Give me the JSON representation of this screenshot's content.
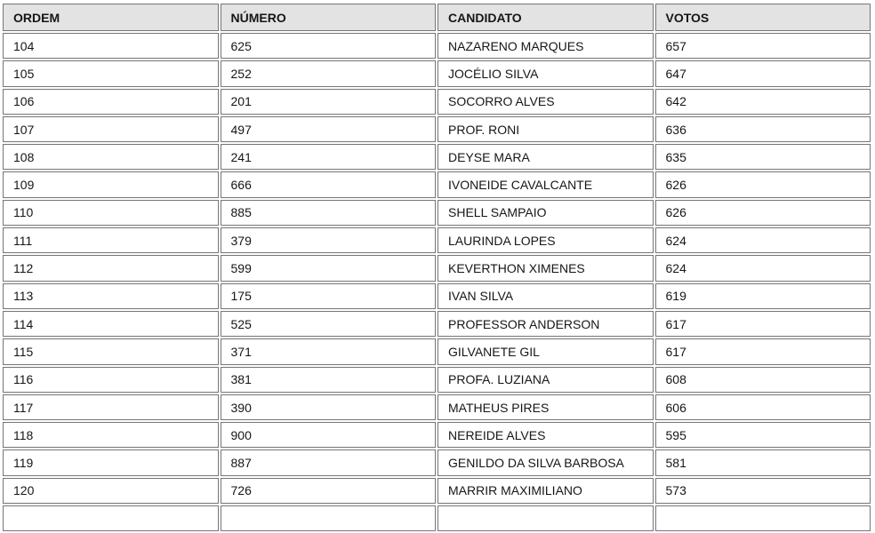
{
  "table": {
    "columns": [
      "ORDEM",
      "NÚMERO",
      "CANDIDATO",
      "VOTOS"
    ],
    "rows": [
      {
        "ordem": "104",
        "numero": "625",
        "candidato": "NAZARENO MARQUES",
        "votos": "657"
      },
      {
        "ordem": "105",
        "numero": "252",
        "candidato": "JOCÉLIO SILVA",
        "votos": "647"
      },
      {
        "ordem": "106",
        "numero": "201",
        "candidato": "SOCORRO ALVES",
        "votos": "642"
      },
      {
        "ordem": "107",
        "numero": "497",
        "candidato": "PROF. RONI",
        "votos": "636"
      },
      {
        "ordem": "108",
        "numero": "241",
        "candidato": "DEYSE MARA",
        "votos": "635"
      },
      {
        "ordem": "109",
        "numero": "666",
        "candidato": "IVONEIDE CAVALCANTE",
        "votos": "626"
      },
      {
        "ordem": "110",
        "numero": "885",
        "candidato": "SHELL SAMPAIO",
        "votos": "626"
      },
      {
        "ordem": "111",
        "numero": "379",
        "candidato": "LAURINDA LOPES",
        "votos": "624"
      },
      {
        "ordem": "112",
        "numero": "599",
        "candidato": "KEVERTHON XIMENES",
        "votos": "624"
      },
      {
        "ordem": "113",
        "numero": "175",
        "candidato": "IVAN SILVA",
        "votos": "619"
      },
      {
        "ordem": "114",
        "numero": "525",
        "candidato": "PROFESSOR ANDERSON",
        "votos": "617"
      },
      {
        "ordem": "115",
        "numero": "371",
        "candidato": "GILVANETE GIL",
        "votos": "617"
      },
      {
        "ordem": "116",
        "numero": "381",
        "candidato": "PROFA. LUZIANA",
        "votos": "608"
      },
      {
        "ordem": "117",
        "numero": "390",
        "candidato": "MATHEUS PIRES",
        "votos": "606"
      },
      {
        "ordem": "118",
        "numero": "900",
        "candidato": "NEREIDE ALVES",
        "votos": "595"
      },
      {
        "ordem": "119",
        "numero": "887",
        "candidato": "GENILDO DA SILVA BARBOSA",
        "votos": "581"
      },
      {
        "ordem": "120",
        "numero": "726",
        "candidato": "MARRIR MAXIMILIANO",
        "votos": "573"
      }
    ]
  },
  "colors": {
    "header_bg": "#e3e3e3",
    "border": "#757575",
    "text": "#161616"
  }
}
